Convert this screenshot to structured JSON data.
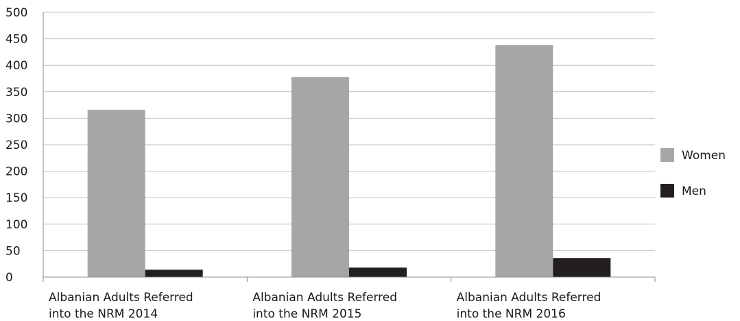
{
  "chart_data": {
    "type": "bar",
    "title": "",
    "xlabel": "",
    "ylabel": "",
    "categories": [
      [
        "Albanian Adults Referred",
        "into the NRM 2014"
      ],
      [
        "Albanian Adults Referred",
        "into the NRM 2015"
      ],
      [
        "Albanian Adults Referred",
        "into the NRM 2016"
      ]
    ],
    "series": [
      {
        "name": "Women",
        "values": [
          316,
          378,
          438
        ],
        "color": "#a6a6a6"
      },
      {
        "name": "Men",
        "values": [
          14,
          18,
          36
        ],
        "color": "#231f20"
      }
    ],
    "ylim": [
      0,
      500
    ],
    "yticks": [
      0,
      50,
      100,
      150,
      200,
      250,
      300,
      350,
      400,
      450,
      500
    ],
    "grid": true,
    "legend_position": "right",
    "colors": {
      "gridline": "#bfbfbf",
      "axis": "#8c8c8c"
    }
  }
}
